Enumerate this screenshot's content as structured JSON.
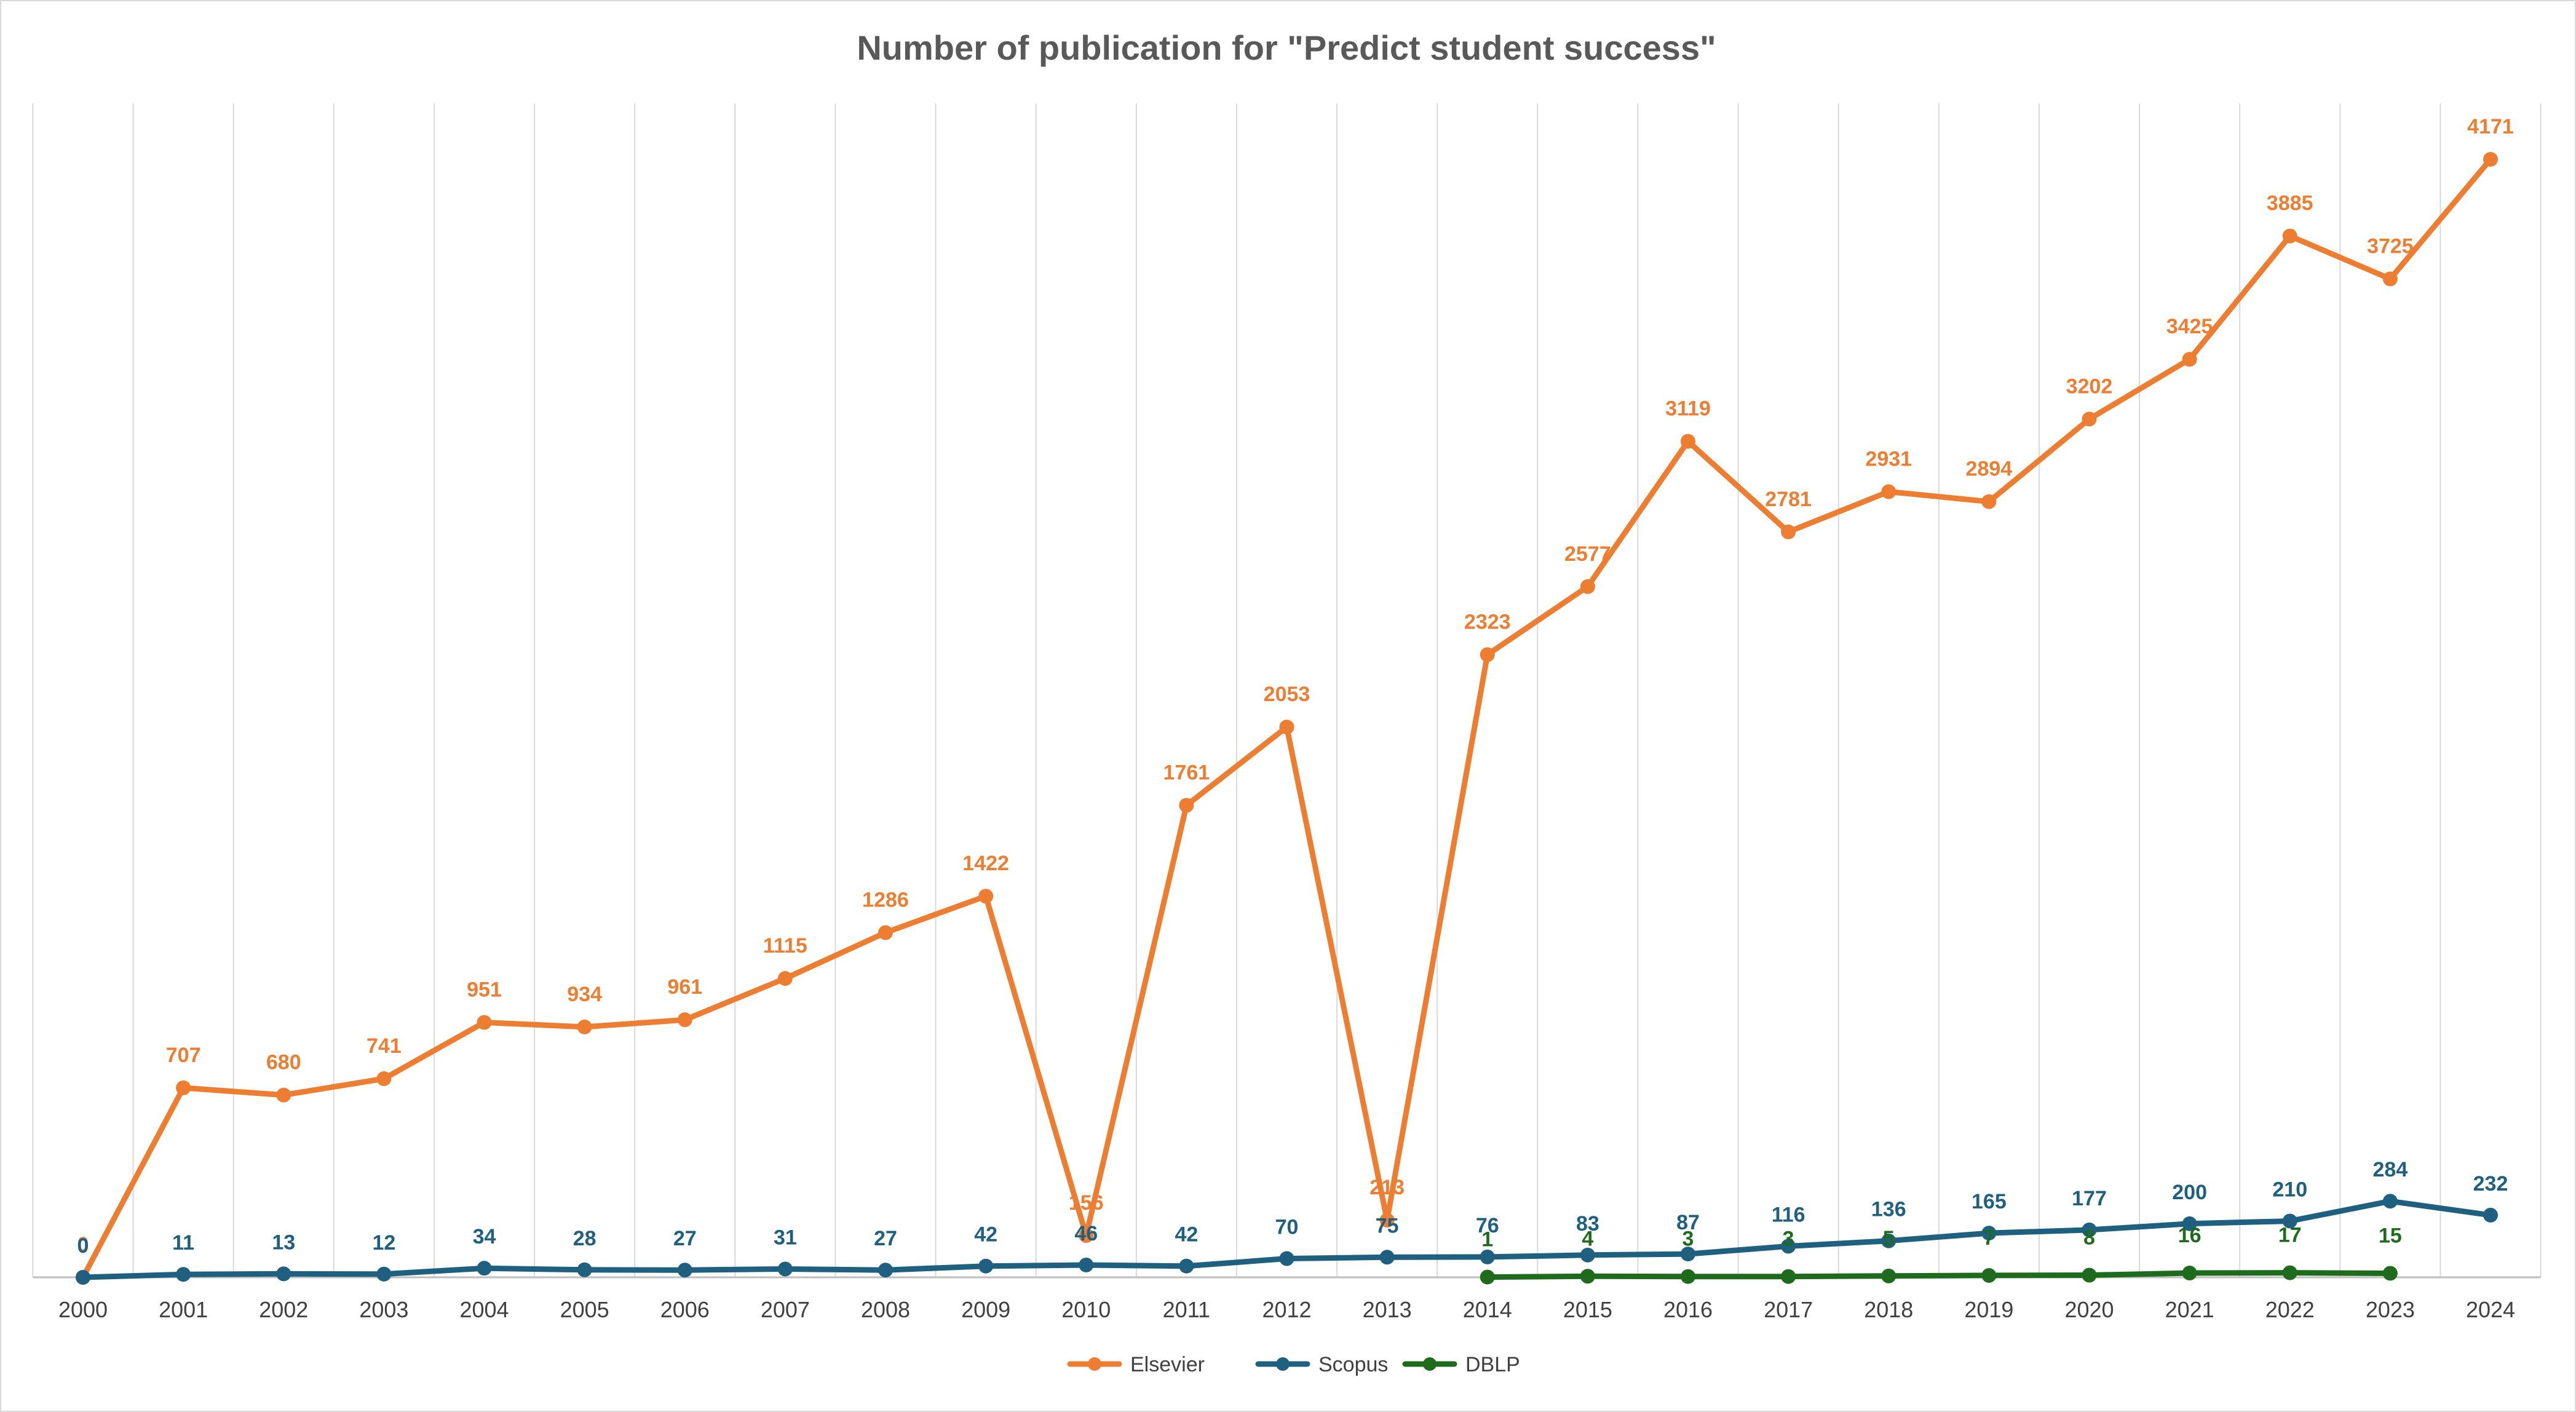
{
  "chart_data": {
    "type": "line",
    "title": "Number of publication for \"Predict student success\"",
    "xlabel": "",
    "ylabel": "",
    "categories": [
      "2000",
      "2001",
      "2002",
      "2003",
      "2004",
      "2005",
      "2006",
      "2007",
      "2008",
      "2009",
      "2010",
      "2011",
      "2012",
      "2013",
      "2014",
      "2015",
      "2016",
      "2017",
      "2018",
      "2019",
      "2020",
      "2021",
      "2022",
      "2023",
      "2024"
    ],
    "ylim": [
      0,
      4380
    ],
    "grid": "vertical",
    "legend": "bottom-center",
    "series": [
      {
        "name": "Elsevier",
        "color": "#ED7D31",
        "values": [
          0,
          707,
          680,
          741,
          951,
          934,
          961,
          1115,
          1286,
          1422,
          156,
          1761,
          2053,
          213,
          2323,
          2577,
          3119,
          2781,
          2931,
          2894,
          3202,
          3425,
          3885,
          3725,
          4171
        ]
      },
      {
        "name": "Scopus",
        "color": "#1F5F7F",
        "values": [
          0,
          11,
          13,
          12,
          34,
          28,
          27,
          31,
          27,
          42,
          46,
          42,
          70,
          75,
          76,
          83,
          87,
          116,
          136,
          165,
          177,
          200,
          210,
          284,
          232
        ]
      },
      {
        "name": "DBLP",
        "color": "#1E6B1E",
        "values": [
          null,
          null,
          null,
          null,
          null,
          null,
          null,
          null,
          null,
          null,
          null,
          null,
          null,
          null,
          1,
          4,
          3,
          3,
          5,
          7,
          8,
          16,
          17,
          15,
          null
        ]
      }
    ]
  }
}
